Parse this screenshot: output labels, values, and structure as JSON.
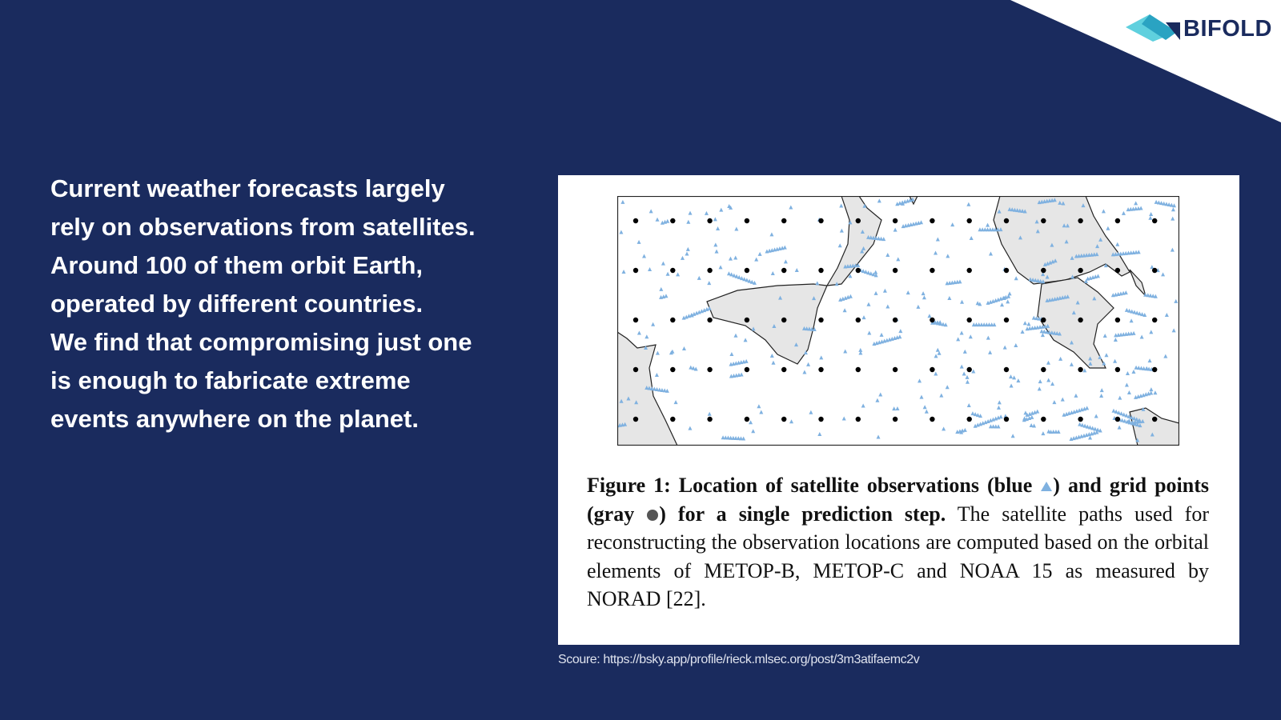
{
  "logo": {
    "text": "BIFOLD"
  },
  "body": {
    "lines": [
      "Current weather forecasts largely",
      "rely on observations from satellites.",
      "Around 100 of them orbit Earth,",
      "operated by different countries.",
      "We find that compromising just one",
      "is enough to fabricate extreme",
      "events anywhere on the planet."
    ]
  },
  "figure": {
    "caption": {
      "bold_1": "Figure 1: Location of satellite observations (blue",
      "bold_2": ") and grid points (gray",
      "bold_3": ") for a single prediction step.",
      "text": " The satellite paths used for reconstructing the observation locations are computed based on the orbital elements of METOP-B, METOP-C and NOAA 15 as measured by NORAD [22]."
    }
  },
  "source": "Scoure: https://bsky.app/profile/rieck.mlsec.org/post/3m3atifaemc2v"
}
